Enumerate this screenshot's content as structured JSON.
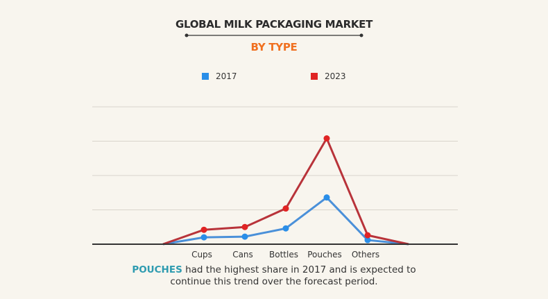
{
  "chart_data": {
    "type": "line",
    "title": "GLOBAL MILK PACKAGING MARKET",
    "subtitle": "BY TYPE",
    "categories": [
      "Cups",
      "Cans",
      "Bottles",
      "Pouches",
      "Others"
    ],
    "series": [
      {
        "name": "2017",
        "color": "#2a8ee8",
        "line_color": "#4a90d9",
        "values": [
          0.2,
          0.22,
          0.46,
          1.36,
          0.12
        ]
      },
      {
        "name": "2023",
        "color": "#e02424",
        "line_color": "#b8333a",
        "values": [
          0.42,
          0.5,
          1.04,
          3.08,
          0.26
        ]
      }
    ],
    "ylim": [
      0,
      4
    ],
    "grid": true,
    "legend_position": "top",
    "xlabel": "",
    "ylabel": "",
    "note": {
      "highlight": "POUCHES",
      "text": " had the highest share in 2017 and is expected to",
      "text2": "continue this trend over the forecast period."
    }
  }
}
